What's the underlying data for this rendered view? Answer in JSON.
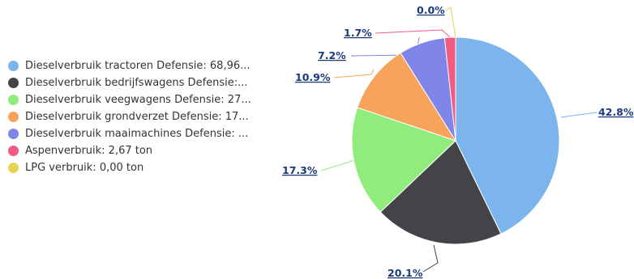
{
  "chart_data": {
    "type": "pie",
    "slices": [
      {
        "label": "Dieselverbruik tractoren Defensie: 68,96...",
        "percent_label": "42.8%",
        "value": 42.8,
        "color": "#7cb5ec"
      },
      {
        "label": "Dieselverbruik bedrijfswagens Defensie:...",
        "percent_label": "20.1%",
        "value": 20.1,
        "color": "#434348"
      },
      {
        "label": "Dieselverbruik veegwagens Defensie: 27...",
        "percent_label": "17.3%",
        "value": 17.3,
        "color": "#90ed7d"
      },
      {
        "label": "Dieselverbruik grondverzet Defensie: 17...",
        "percent_label": "10.9%",
        "value": 10.9,
        "color": "#f7a35c"
      },
      {
        "label": "Dieselverbruik maaimachines Defensie: ...",
        "percent_label": "7.2%",
        "value": 7.2,
        "color": "#8085e9"
      },
      {
        "label": "Aspenverbruik: 2,67 ton",
        "percent_label": "1.7%",
        "value": 1.7,
        "color": "#f15c80"
      },
      {
        "label": "LPG verbruik: 0,00 ton",
        "percent_label": "0.0%",
        "value": 0.0,
        "color": "#e4d354"
      }
    ],
    "legend_position": "left"
  }
}
